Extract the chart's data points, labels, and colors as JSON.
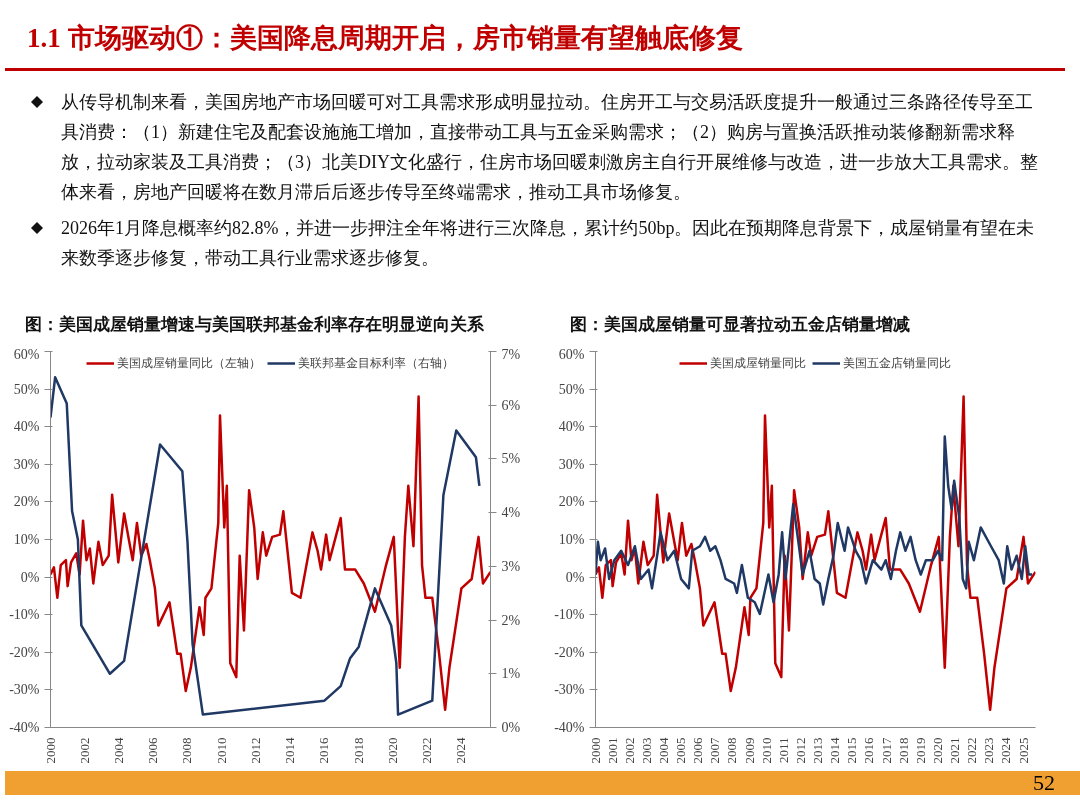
{
  "chart_data": [
    {
      "type": "other",
      "title": "1.1 市场驱动①：美国降息周期开启，房市销量有望触底修复",
      "annotations": [
        "从传导机制来看，美国房地产市场回暖可对工具需求形成明显拉动。住房开工与交易活跃度提升一般通过三条路径传导至工具消费：（1）新建住宅及配套设施施工增加，直接带动工具与五金采购需求；（2）购房与置换活跃推动装修翻新需求释放，拉动家装及工具消费；（3）北美DIY文化盛行，住房市场回暖刺激房主自行开展维修与改造，进一步放大工具需求。整体来看，房地产回暖将在数月滞后后逐步传导至终端需求，推动工具市场修复。",
        "2026年1月降息概率约82.8%，并进一步押注全年将进行三次降息，累计约50bp。因此在预期降息背景下，成屋销量有望在未来数季逐步修复，带动工具行业需求逐步修复。",
        "52"
      ]
    },
    {
      "type": "line",
      "title": "图：美国成屋销量增速与美国联邦基金利率存在明显逆向关系",
      "legend": "top",
      "xlim": [
        2000,
        2025.7
      ],
      "xticks": [
        2000,
        2002,
        2004,
        2006,
        2008,
        2010,
        2012,
        2014,
        2016,
        2018,
        2020,
        2022,
        2024
      ],
      "ylim": [
        -40,
        60
      ],
      "yticks": [
        {
          "value": -40,
          "label": "-40%"
        },
        {
          "value": -30,
          "label": "-30%"
        },
        {
          "value": -20,
          "label": "-20%"
        },
        {
          "value": -10,
          "label": "-10%"
        },
        {
          "value": 0,
          "label": "0%"
        },
        {
          "value": 10,
          "label": "10%"
        },
        {
          "value": 20,
          "label": "20%"
        },
        {
          "value": 30,
          "label": "30%"
        },
        {
          "value": 40,
          "label": "40%"
        },
        {
          "value": 50,
          "label": "50%"
        },
        {
          "value": 60,
          "label": "60%"
        }
      ],
      "y2lim": [
        0,
        7
      ],
      "y2ticks": [
        {
          "value": 0,
          "label": "0%"
        },
        {
          "value": 1,
          "label": "1%"
        },
        {
          "value": 2,
          "label": "2%"
        },
        {
          "value": 3,
          "label": "3%"
        },
        {
          "value": 4,
          "label": "4%"
        },
        {
          "value": 5,
          "label": "5%"
        },
        {
          "value": 6,
          "label": "6%"
        },
        {
          "value": 7,
          "label": "7%"
        }
      ],
      "series": [
        {
          "name": "美国成屋销量同比（左轴）",
          "color": "#c00000",
          "x": [
            2000.0,
            2000.2,
            2000.4,
            2000.6,
            2000.9,
            2001.0,
            2001.2,
            2001.5,
            2001.7,
            2001.9,
            2002.1,
            2002.3,
            2002.5,
            2002.8,
            2003.05,
            2003.4,
            2003.6,
            2003.96,
            2004.3,
            2004.6,
            2004.8,
            2005.05,
            2005.3,
            2005.6,
            2005.8,
            2006.1,
            2006.3,
            2006.95,
            2007.2,
            2007.4,
            2007.6,
            2007.9,
            2008.2,
            2008.7,
            2008.95,
            2009.05,
            2009.4,
            2009.8,
            2009.9,
            2010.15,
            2010.3,
            2010.5,
            2010.85,
            2011.05,
            2011.3,
            2011.6,
            2011.9,
            2012.1,
            2012.4,
            2012.6,
            2012.95,
            2013.4,
            2013.6,
            2013.9,
            2014.1,
            2014.6,
            2015.3,
            2015.6,
            2015.8,
            2016.1,
            2016.3,
            2016.95,
            2017.2,
            2017.8,
            2018.3,
            2018.95,
            2019.6,
            2020.05,
            2020.4,
            2020.7,
            2020.9,
            2021.2,
            2021.5,
            2021.7,
            2021.9,
            2022.3,
            2022.7,
            2023.05,
            2023.3,
            2024.0,
            2024.6,
            2025.0,
            2025.26,
            2025.7
          ],
          "values": [
            0.7,
            2.6,
            -5.5,
            3.2,
            4.5,
            -2.4,
            3.9,
            6.3,
            0.7,
            15,
            4.5,
            7.6,
            -1.7,
            9.4,
            3.2,
            5.7,
            21.9,
            3.9,
            16.9,
            9.4,
            4.5,
            14.4,
            5.7,
            8.8,
            4.5,
            -3,
            -12.9,
            -6.7,
            -14.2,
            -20.4,
            -20.4,
            -30.3,
            -24,
            -8,
            -15.4,
            -5.5,
            -3,
            14.4,
            43,
            13.2,
            24.3,
            -22.9,
            -26.6,
            5.7,
            -14.2,
            23.1,
            13.2,
            -0.5,
            11.9,
            5.7,
            10.7,
            11.3,
            17.5,
            4.5,
            -4.2,
            -5.5,
            11.9,
            7,
            2,
            11.3,
            4.5,
            15.7,
            2,
            2,
            -1.7,
            -9.2,
            3.2,
            10.7,
            -24.1,
            10.7,
            24.3,
            8.2,
            48,
            3.2,
            -5.5,
            -5.5,
            -20.4,
            -35.3,
            -24.1,
            -3,
            -0.5,
            10.7,
            -1.7,
            1.4
          ]
        },
        {
          "name": "美联邦基金目标利率（右轴）",
          "color": "#1f3864",
          "axis": "y2",
          "x": [
            2000.0,
            2000.27,
            2000.95,
            2001.26,
            2001.6,
            2001.8,
            2003.47,
            2004.3,
            2006.4,
            2007.7,
            2008.0,
            2008.3,
            2008.9,
            2016.0,
            2016.95,
            2017.5,
            2018.0,
            2018.95,
            2019.9,
            2020.2,
            2020.3,
            2022.3,
            2022.95,
            2023.7,
            2024.85,
            2025.05
          ],
          "values": [
            5.77,
            6.52,
            6.03,
            4.03,
            3.5,
            1.9,
            1.0,
            1.24,
            5.27,
            4.77,
            3.46,
            1.55,
            0.24,
            0.5,
            0.77,
            1.29,
            1.5,
            2.59,
            1.9,
            1.2,
            0.24,
            0.5,
            4.33,
            5.53,
            5.03,
            4.5
          ]
        }
      ]
    },
    {
      "type": "line",
      "title": "图：美国成屋销量可显著拉动五金店销量增减",
      "legend": "top",
      "xlim": [
        2000,
        2025.7
      ],
      "xticks": [
        2000,
        2001,
        2002,
        2003,
        2004,
        2005,
        2006,
        2007,
        2008,
        2009,
        2010,
        2011,
        2012,
        2013,
        2014,
        2015,
        2016,
        2017,
        2018,
        2019,
        2020,
        2021,
        2022,
        2023,
        2024,
        2025
      ],
      "ylim": [
        -40,
        60
      ],
      "yticks": [
        {
          "value": -40,
          "label": "-40%"
        },
        {
          "value": -30,
          "label": "-30%"
        },
        {
          "value": -20,
          "label": "-20%"
        },
        {
          "value": -10,
          "label": "-10%"
        },
        {
          "value": 0,
          "label": "0%"
        },
        {
          "value": 10,
          "label": "10%"
        },
        {
          "value": 20,
          "label": "20%"
        },
        {
          "value": 30,
          "label": "30%"
        },
        {
          "value": 40,
          "label": "40%"
        },
        {
          "value": 50,
          "label": "50%"
        },
        {
          "value": 60,
          "label": "60%"
        }
      ],
      "series": [
        {
          "name": "美国成屋销量同比",
          "color": "#c00000",
          "x": [
            2000.0,
            2000.2,
            2000.4,
            2000.6,
            2000.9,
            2001.0,
            2001.2,
            2001.5,
            2001.7,
            2001.9,
            2002.1,
            2002.3,
            2002.5,
            2002.8,
            2003.05,
            2003.4,
            2003.6,
            2003.96,
            2004.3,
            2004.6,
            2004.8,
            2005.05,
            2005.3,
            2005.6,
            2005.8,
            2006.1,
            2006.3,
            2006.95,
            2007.2,
            2007.4,
            2007.6,
            2007.9,
            2008.2,
            2008.7,
            2008.95,
            2009.05,
            2009.4,
            2009.8,
            2009.9,
            2010.15,
            2010.3,
            2010.5,
            2010.85,
            2011.05,
            2011.3,
            2011.6,
            2011.9,
            2012.1,
            2012.4,
            2012.6,
            2012.95,
            2013.4,
            2013.6,
            2013.9,
            2014.1,
            2014.6,
            2015.3,
            2015.6,
            2015.8,
            2016.1,
            2016.3,
            2016.95,
            2017.2,
            2017.8,
            2018.3,
            2018.95,
            2019.6,
            2020.05,
            2020.4,
            2020.7,
            2020.9,
            2021.2,
            2021.5,
            2021.7,
            2021.9,
            2022.3,
            2022.7,
            2023.05,
            2023.3,
            2024.0,
            2024.6,
            2025.0,
            2025.26,
            2025.7
          ],
          "values": [
            0.7,
            2.6,
            -5.5,
            3.2,
            4.5,
            -2.4,
            3.9,
            6.3,
            0.7,
            15,
            4.5,
            7.6,
            -1.7,
            9.4,
            3.2,
            5.7,
            21.9,
            3.9,
            16.9,
            9.4,
            4.5,
            14.4,
            5.7,
            8.8,
            4.5,
            -3,
            -12.9,
            -6.7,
            -14.2,
            -20.4,
            -20.4,
            -30.3,
            -24,
            -8,
            -15.4,
            -5.5,
            -3,
            14.4,
            43,
            13.2,
            24.3,
            -22.9,
            -26.6,
            5.7,
            -14.2,
            23.1,
            13.2,
            -0.5,
            11.9,
            5.7,
            10.7,
            11.3,
            17.5,
            4.5,
            -4.2,
            -5.5,
            11.9,
            7,
            2,
            11.3,
            4.5,
            15.7,
            2,
            2,
            -1.7,
            -9.2,
            3.2,
            10.7,
            -24.1,
            10.7,
            24.3,
            8.2,
            48,
            3.2,
            -5.5,
            -5.5,
            -20.4,
            -35.3,
            -24.1,
            -3,
            -0.5,
            10.7,
            -1.7,
            1.4
          ]
        },
        {
          "name": "美国五金店销量同比",
          "color": "#1f3864",
          "x": [
            2000,
            2000.14,
            2000.3,
            2000.56,
            2000.8,
            2001.1,
            2001.5,
            2001.9,
            2002.3,
            2002.65,
            2003.1,
            2003.3,
            2003.6,
            2003.8,
            2004.2,
            2004.6,
            2005.0,
            2005.45,
            2005.65,
            2006.1,
            2006.4,
            2006.7,
            2007.0,
            2007.3,
            2007.6,
            2008.1,
            2008.26,
            2008.55,
            2008.9,
            2009.3,
            2009.6,
            2010.1,
            2010.4,
            2010.7,
            2010.9,
            2011.1,
            2011.35,
            2011.55,
            2011.85,
            2012.1,
            2012.5,
            2012.8,
            2013.1,
            2013.3,
            2013.6,
            2013.9,
            2014.15,
            2014.55,
            2014.75,
            2015.2,
            2015.5,
            2015.8,
            2016.2,
            2016.7,
            2016.95,
            2017.25,
            2017.55,
            2017.8,
            2018.1,
            2018.4,
            2018.7,
            2019.0,
            2019.3,
            2019.7,
            2020.0,
            2020.25,
            2020.4,
            2020.6,
            2020.8,
            2020.95,
            2021.25,
            2021.45,
            2021.65,
            2021.8,
            2022.1,
            2022.5,
            2023.1,
            2023.55,
            2023.85,
            2024.05,
            2024.3,
            2024.6,
            2024.9,
            2025.1,
            2025.3,
            2025.5
          ],
          "values": [
            0.7,
            9.4,
            4.5,
            7.6,
            -0.5,
            4.5,
            7,
            3.2,
            8.2,
            -0.5,
            2,
            -3,
            5.7,
            11.9,
            4.5,
            7,
            -0.5,
            -3,
            7,
            8.2,
            10.7,
            7,
            8.2,
            4.5,
            -0.5,
            -1.7,
            -4.2,
            3.2,
            -5.5,
            -6.7,
            -9.8,
            0.7,
            -6.7,
            0.7,
            11.9,
            -0.5,
            10.7,
            19.4,
            9.4,
            0.7,
            7,
            -0.5,
            -1.7,
            -7.3,
            -0.5,
            5.7,
            14.4,
            7,
            13.2,
            7,
            4.5,
            -1.7,
            4.5,
            2,
            4.5,
            -0.5,
            7,
            11.9,
            7,
            10.7,
            4.5,
            0.7,
            4.5,
            4.5,
            7,
            4.5,
            37.4,
            24.3,
            18.1,
            25.6,
            15.7,
            -0.5,
            -3,
            9.4,
            4.5,
            13.2,
            8.2,
            4.5,
            -1.7,
            8.2,
            2,
            5.7,
            -0.5,
            8.2,
            0.7,
            0.7
          ]
        }
      ]
    }
  ]
}
